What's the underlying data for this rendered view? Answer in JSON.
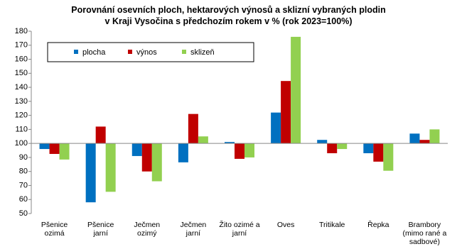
{
  "chart_data": {
    "type": "bar",
    "title": "Porovnání osevních ploch, hektarových výnosů a sklizní vybraných plodin\nv Kraji Vysočina s předchozím rokem v % (rok 2023=100%)",
    "categories": [
      "Pšenice\nozimá",
      "Pšenice\njarní",
      "Ječmen\nozimý",
      "Ječmen\njarní",
      "Žito ozimé a\njarní",
      "Oves",
      "Tritikale",
      "Řepka",
      "Brambory\n(mimo rané a\nsadbové)"
    ],
    "series": [
      {
        "name": "plocha",
        "color": "#0070c0",
        "values": [
          96,
          58,
          91,
          86.5,
          101,
          122,
          102.5,
          93,
          107
        ]
      },
      {
        "name": "výnos",
        "color": "#c00000",
        "values": [
          92.5,
          112,
          80,
          121,
          89,
          144.5,
          93,
          87,
          102.5
        ]
      },
      {
        "name": "sklizeň",
        "color": "#92d050",
        "values": [
          88.5,
          65.5,
          73,
          105,
          90,
          176,
          96,
          80.5,
          110
        ]
      }
    ],
    "ylim": [
      50,
      180
    ],
    "yticks": [
      50,
      60,
      70,
      80,
      90,
      100,
      110,
      120,
      130,
      140,
      150,
      160,
      170,
      180
    ],
    "baseline": 100,
    "legend": "top-left"
  }
}
